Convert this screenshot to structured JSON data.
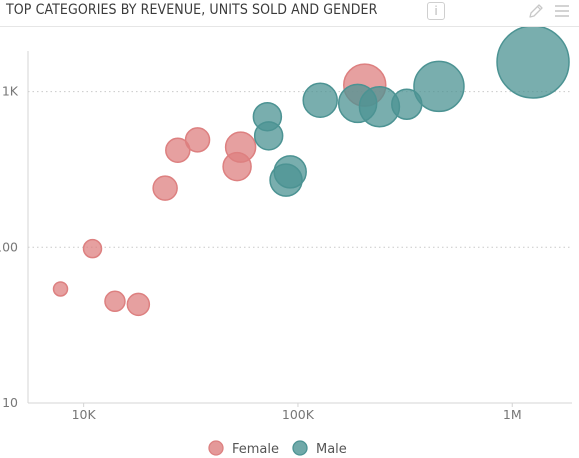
{
  "header": {
    "title": "TOP CATEGORIES BY REVENUE, UNITS SOLD AND GENDER",
    "info_icon_label": "i",
    "icons": [
      "info-icon",
      "pencil-icon",
      "menu-icon"
    ]
  },
  "chart_data": {
    "type": "scatter",
    "title": "TOP CATEGORIES BY REVENUE, UNITS SOLD AND GENDER",
    "xscale": "log",
    "yscale": "log",
    "xlim": [
      5500,
      1900000
    ],
    "ylim": [
      10,
      2600
    ],
    "x_ticks": [
      {
        "value": 10000,
        "label": "10K"
      },
      {
        "value": 100000,
        "label": "100K"
      },
      {
        "value": 1000000,
        "label": "1M"
      }
    ],
    "y_ticks": [
      {
        "value": 10,
        "label": "10"
      },
      {
        "value": 100,
        "label": "100"
      },
      {
        "value": 1000,
        "label": "1K"
      }
    ],
    "grid": "horizontal dotted",
    "legend": "bottom",
    "colors": {
      "Female": "#dd8080",
      "Male": "#4c9393"
    },
    "series": [
      {
        "name": "Female",
        "points": [
          {
            "x": 7800,
            "y": 54,
            "size": 7
          },
          {
            "x": 11000,
            "y": 98,
            "size": 9
          },
          {
            "x": 14000,
            "y": 45,
            "size": 10
          },
          {
            "x": 18000,
            "y": 43,
            "size": 11
          },
          {
            "x": 24000,
            "y": 240,
            "size": 12
          },
          {
            "x": 27500,
            "y": 420,
            "size": 12
          },
          {
            "x": 34000,
            "y": 490,
            "size": 12
          },
          {
            "x": 52000,
            "y": 330,
            "size": 14
          },
          {
            "x": 54000,
            "y": 440,
            "size": 15
          },
          {
            "x": 205000,
            "y": 1100,
            "size": 21
          }
        ]
      },
      {
        "name": "Male",
        "points": [
          {
            "x": 72000,
            "y": 690,
            "size": 14
          },
          {
            "x": 73000,
            "y": 520,
            "size": 14
          },
          {
            "x": 88000,
            "y": 270,
            "size": 16
          },
          {
            "x": 92000,
            "y": 305,
            "size": 16
          },
          {
            "x": 127000,
            "y": 880,
            "size": 17
          },
          {
            "x": 190000,
            "y": 840,
            "size": 19
          },
          {
            "x": 240000,
            "y": 800,
            "size": 20
          },
          {
            "x": 322000,
            "y": 830,
            "size": 15
          },
          {
            "x": 455000,
            "y": 1080,
            "size": 25
          },
          {
            "x": 1250000,
            "y": 1550,
            "size": 36
          }
        ]
      }
    ]
  }
}
